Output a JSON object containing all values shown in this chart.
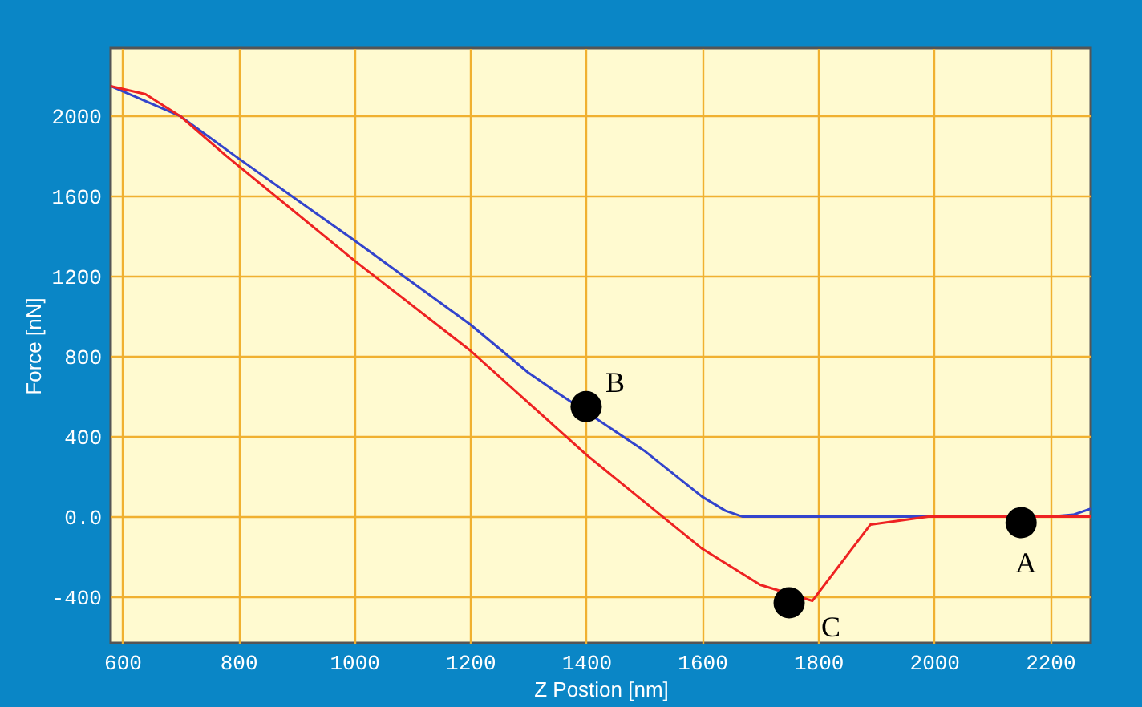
{
  "chart_data": {
    "type": "line",
    "xlabel": "Z Postion [nm]",
    "ylabel": "Force [nN]",
    "xlim": [
      580,
      2270
    ],
    "ylim": [
      -630,
      2340
    ],
    "xticks": [
      600,
      800,
      1000,
      1200,
      1400,
      1600,
      1800,
      2000,
      2200
    ],
    "yticks": [
      -400,
      {
        "value": 0,
        "label": "0.0"
      },
      400,
      800,
      1200,
      1600,
      2000
    ],
    "grid": true,
    "series": [
      {
        "color": "#3344cc",
        "x": [
          580,
          700,
          800,
          1000,
          1200,
          1300,
          1350,
          1500,
          1600,
          1640,
          1670,
          2000,
          2200,
          2240,
          2270
        ],
        "values": [
          2150,
          2000,
          1790,
          1380,
          960,
          720,
          620,
          330,
          100,
          30,
          0,
          0,
          0,
          10,
          40
        ]
      },
      {
        "color": "#ee2222",
        "x": [
          580,
          640,
          700,
          780,
          1000,
          1200,
          1400,
          1600,
          1700,
          1790,
          1890,
          1990,
          2270
        ],
        "values": [
          2150,
          2110,
          2000,
          1800,
          1280,
          830,
          310,
          -160,
          -340,
          -420,
          -40,
          0,
          0
        ]
      },
      {
        "type": "scatter",
        "color": "#000000",
        "marker": "circle",
        "x": [
          2150,
          1400,
          1750
        ],
        "values": [
          -30,
          550,
          -430
        ]
      }
    ],
    "annotations": [
      {
        "text": "A",
        "x": 2150,
        "y": -30
      },
      {
        "text": "B",
        "x": 1400,
        "y": 550
      },
      {
        "text": "C",
        "x": 1750,
        "y": -430
      }
    ]
  }
}
